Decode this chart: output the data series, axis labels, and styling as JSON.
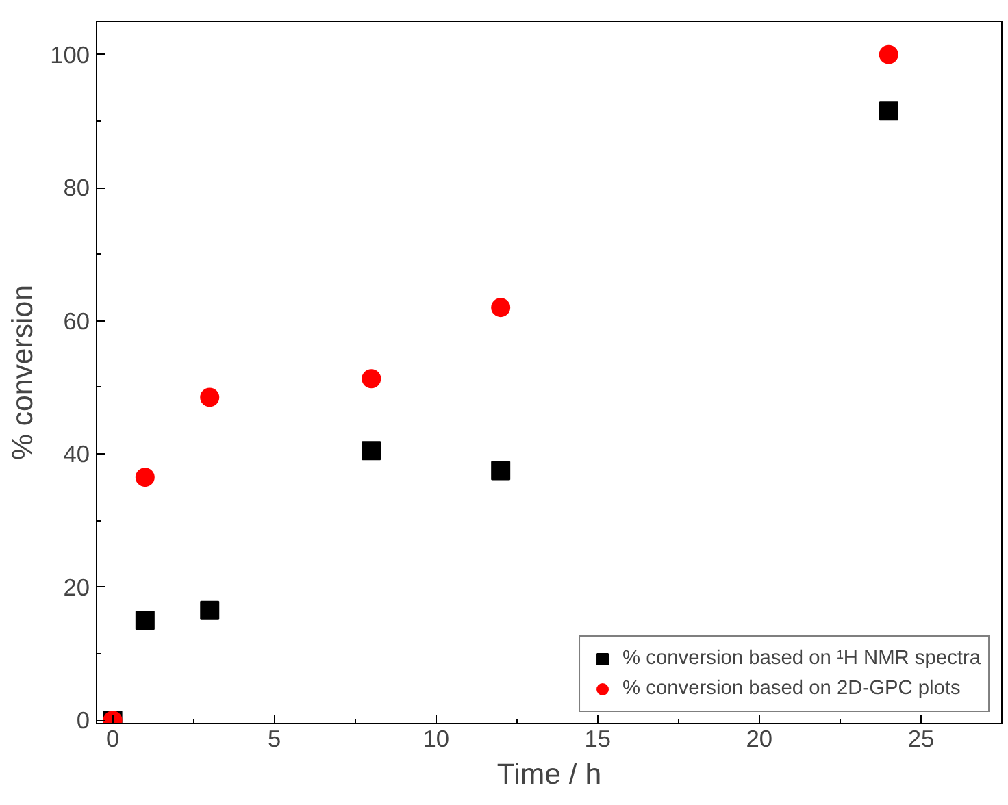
{
  "chart_data": {
    "type": "scatter",
    "xlabel": "Time / h",
    "ylabel": "% conversion",
    "x": [
      0,
      1,
      3,
      8,
      12,
      24
    ],
    "series": [
      {
        "name": "% conversion based on ¹H NMR spectra",
        "color": "#000000",
        "marker": "square",
        "values": [
          0,
          15,
          16.5,
          40.5,
          37.5,
          91.5
        ]
      },
      {
        "name": "% conversion based on 2D-GPC plots",
        "color": "#ff0000",
        "marker": "circle",
        "values": [
          0,
          36.5,
          48.5,
          51.3,
          62,
          100
        ]
      }
    ],
    "xlim": [
      -0.5,
      27.5
    ],
    "ylim": [
      -0.5,
      105
    ],
    "xticks": [
      0,
      5,
      10,
      15,
      20,
      25
    ],
    "yticks": [
      0,
      20,
      40,
      60,
      80,
      100
    ],
    "grid": false,
    "legend": "bottom right"
  }
}
